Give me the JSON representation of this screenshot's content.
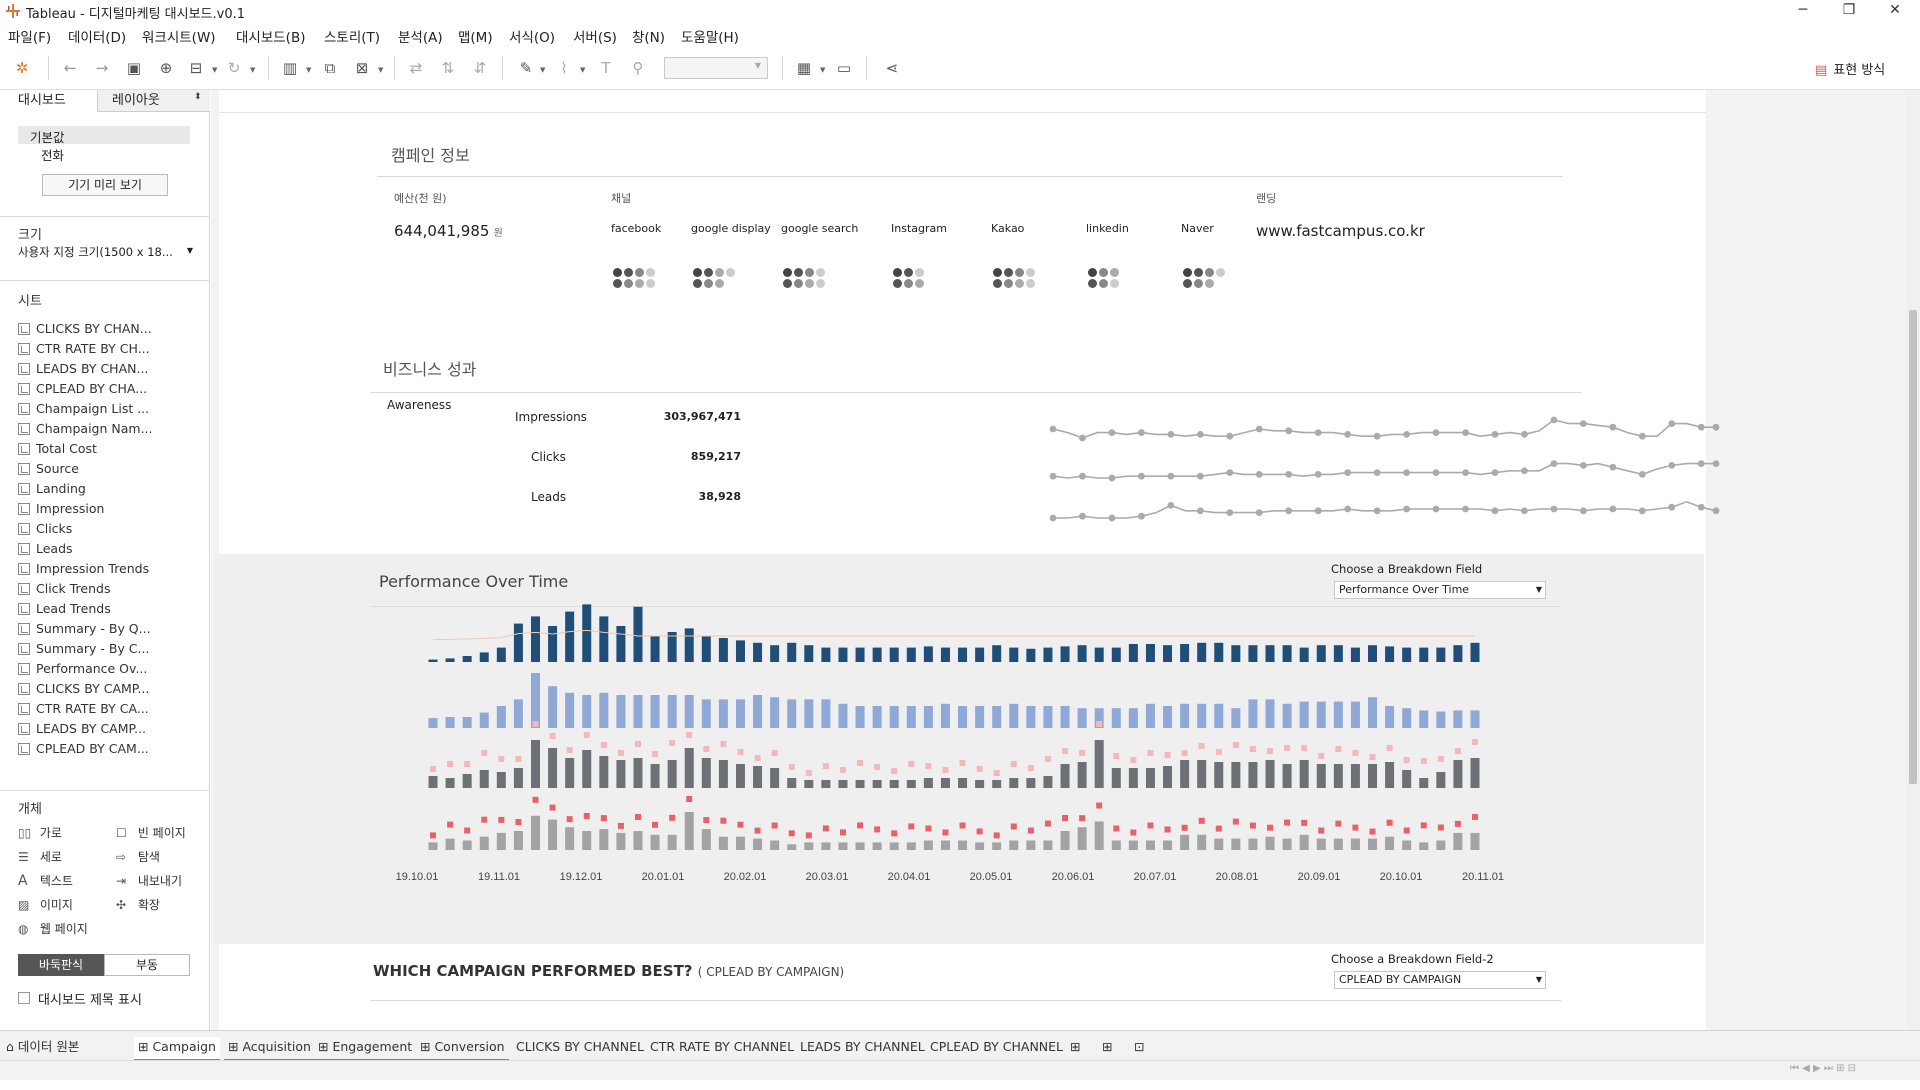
{
  "window": {
    "title": "Tableau - 디지털마케팅 대시보드.v0.1",
    "controls": [
      "─",
      "❐",
      "✕"
    ]
  },
  "menu": [
    "파일(F)",
    "데이터(D)",
    "워크시트(W)",
    "대시보드(B)",
    "스토리(T)",
    "분석(A)",
    "맵(M)",
    "서식(O)",
    "서버(S)",
    "창(N)",
    "도움말(H)"
  ],
  "toolbar": {
    "present_label": "표현 방식"
  },
  "left_panel": {
    "tab_dashboard": "대시보드",
    "tab_layout": "레이아웃",
    "device_default": "기본값",
    "device_phone": "전화",
    "device_preview_button": "기기 미리 보기",
    "size_title": "크기",
    "size_value": "사용자 지정 크기(1500 x 18...",
    "sheets_title": "시트",
    "sheets": [
      "CLICKS BY CHAN...",
      "CTR RATE BY CH...",
      "LEADS BY CHAN...",
      "CPLEAD BY CHA...",
      "Champaign List ...",
      "Champaign Nam...",
      "Total Cost",
      "Source",
      "Landing",
      "Impression",
      "Clicks",
      "Leads",
      "Impression Trends",
      "Click Trends",
      "Lead Trends",
      "Summary - By Q...",
      "Summary - By C...",
      "Performance Ov...",
      "CLICKS BY CAMP...",
      "CTR RATE BY CA...",
      "LEADS BY CAMP...",
      "CPLEAD BY CAM..."
    ],
    "objects_title": "개체",
    "objects": [
      "가로",
      "빈 페이지",
      "세로",
      "탐색",
      "텍스트",
      "내보내기",
      "이미지",
      "확장",
      "웹 페이지"
    ],
    "tiled": "바둑판식",
    "floating": "부동",
    "show_title": "대시보드 제목 표시"
  },
  "dashboard": {
    "campaign_section_title": "캠페인 정보",
    "budget_label": "예산(천 원)",
    "budget_value": "644,041,985",
    "budget_unit": "원",
    "channel_label": "채널",
    "channels": [
      "facebook",
      "google display",
      "google search",
      "Instagram",
      "Kakao",
      "linkedin",
      "Naver"
    ],
    "landing_label": "랜딩",
    "landing_value": "www.fastcampus.co.kr",
    "business_section_title": "비즈니스 성과",
    "awareness_label": "Awareness",
    "metrics": [
      {
        "name": "Impressions",
        "value": "303,967,471"
      },
      {
        "name": "Clicks",
        "value": "859,217"
      },
      {
        "name": "Leads",
        "value": "38,928"
      }
    ],
    "performance_title": "Performance Over Time",
    "breakdown_label": "Choose a Breakdown Field",
    "breakdown_value": "Performance Over Time",
    "x_ticks": [
      "19.10.01",
      "19.11.01",
      "19.12.01",
      "20.01.01",
      "20.02.01",
      "20.03.01",
      "20.04.01",
      "20.05.01",
      "20.06.01",
      "20.07.01",
      "20.08.01",
      "20.09.01",
      "20.10.01",
      "20.11.01"
    ],
    "which_title": "WHICH CAMPAIGN PERFORMED BEST?",
    "which_sub": "( CPLEAD BY CAMPAIGN)",
    "breakdown2_label": "Choose a Breakdown Field-2",
    "breakdown2_value": "CPLEAD BY CAMPAIGN"
  },
  "colors": {
    "dark_blue": "#1f4e79",
    "light_blue": "#8fa8d6",
    "dark_gray": "#6d7074",
    "light_gray": "#a3a3a3",
    "pink": "#f4b8b8",
    "red": "#e8606a"
  },
  "chart_data": [
    {
      "type": "bar",
      "series": [
        {
          "name": "",
          "values": [
            2,
            3,
            5,
            8,
            12,
            32,
            38,
            30,
            42,
            48,
            38,
            30,
            46,
            22,
            25,
            28,
            22,
            20,
            18,
            16,
            14,
            16,
            14,
            12,
            12,
            12,
            12,
            12,
            12,
            13,
            12,
            12,
            12,
            14,
            12,
            11,
            12,
            13,
            14,
            12,
            12,
            15,
            15,
            14,
            15,
            16,
            16,
            14,
            14,
            14,
            14,
            12,
            14,
            14,
            12,
            14,
            13,
            12,
            12,
            12,
            14,
            16
          ]
        },
        {
          "name": "",
          "values": [
            9,
            10,
            10,
            14,
            20,
            26,
            50,
            38,
            32,
            30,
            32,
            30,
            30,
            30,
            30,
            30,
            26,
            26,
            26,
            30,
            28,
            26,
            26,
            26,
            22,
            20,
            20,
            20,
            20,
            20,
            22,
            20,
            20,
            20,
            22,
            20,
            20,
            20,
            18,
            18,
            18,
            18,
            22,
            20,
            22,
            22,
            22,
            18,
            26,
            26,
            22,
            24,
            24,
            24,
            24,
            28,
            20,
            18,
            16,
            15,
            16,
            16
          ]
        },
        {
          "name": "",
          "values": [
            12,
            10,
            14,
            18,
            16,
            20,
            48,
            40,
            30,
            38,
            32,
            28,
            30,
            24,
            28,
            40,
            30,
            28,
            24,
            22,
            20,
            10,
            8,
            8,
            8,
            8,
            8,
            8,
            8,
            10,
            10,
            10,
            8,
            8,
            10,
            10,
            12,
            24,
            26,
            48,
            20,
            20,
            20,
            22,
            28,
            28,
            26,
            26,
            26,
            28,
            24,
            28,
            24,
            24,
            24,
            24,
            26,
            18,
            10,
            16,
            28,
            30
          ]
        },
        {
          "name": "",
          "values": [
            8,
            12,
            10,
            14,
            18,
            20,
            36,
            32,
            24,
            20,
            22,
            18,
            20,
            16,
            16,
            40,
            22,
            14,
            14,
            12,
            10,
            6,
            8,
            8,
            8,
            8,
            8,
            8,
            8,
            10,
            10,
            10,
            8,
            8,
            10,
            10,
            10,
            20,
            24,
            30,
            10,
            10,
            10,
            10,
            16,
            16,
            12,
            12,
            12,
            14,
            12,
            16,
            12,
            12,
            12,
            12,
            14,
            10,
            8,
            10,
            18,
            18
          ]
        }
      ]
    },
    {
      "type": "line",
      "series": [
        {
          "name": "Impressions",
          "values": [
            30,
            26,
            20,
            26,
            26,
            24,
            26,
            24,
            24,
            22,
            24,
            22,
            22,
            26,
            30,
            28,
            28,
            26,
            26,
            26,
            24,
            22,
            22,
            24,
            24,
            26,
            26,
            26,
            26,
            22,
            24,
            26,
            24,
            28,
            40,
            36,
            36,
            34,
            32,
            26,
            22,
            22,
            36,
            36,
            32,
            32
          ]
        },
        {
          "name": "Clicks",
          "values": [
            22,
            20,
            22,
            20,
            20,
            22,
            22,
            22,
            22,
            22,
            22,
            24,
            26,
            24,
            24,
            24,
            24,
            22,
            24,
            24,
            26,
            26,
            26,
            26,
            26,
            26,
            26,
            26,
            26,
            24,
            26,
            28,
            28,
            28,
            36,
            36,
            34,
            36,
            32,
            28,
            24,
            30,
            34,
            36,
            36,
            36
          ]
        },
        {
          "name": "Leads",
          "values": [
            20,
            20,
            22,
            20,
            20,
            20,
            22,
            26,
            34,
            28,
            28,
            26,
            26,
            26,
            26,
            28,
            28,
            28,
            28,
            28,
            30,
            28,
            28,
            28,
            30,
            30,
            30,
            30,
            30,
            30,
            28,
            30,
            28,
            30,
            30,
            30,
            28,
            30,
            30,
            30,
            28,
            30,
            32,
            38,
            32,
            28
          ]
        }
      ]
    }
  ]
}
